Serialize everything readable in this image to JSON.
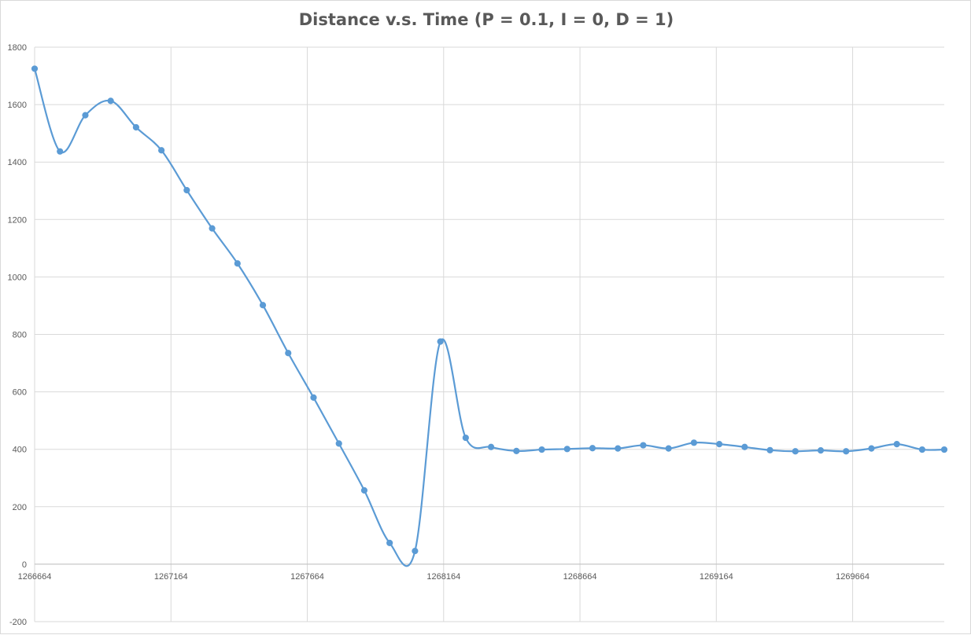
{
  "chart_data": {
    "type": "line",
    "title": "Distance v.s. Time (P = 0.1, I = 0, D = 1)",
    "xlabel": "",
    "ylabel": "",
    "xlim": [
      1266664,
      1270000
    ],
    "ylim": [
      -200,
      1800
    ],
    "x_ticks": [
      1266664,
      1267164,
      1267664,
      1268164,
      1268664,
      1269164,
      1269664
    ],
    "y_ticks": [
      -200,
      0,
      200,
      400,
      600,
      800,
      1000,
      1200,
      1400,
      1600,
      1800
    ],
    "grid": true,
    "legend": "none",
    "line_style": "smoothed",
    "series_color": "#5b9bd5",
    "series": [
      {
        "x": [
          1266664,
          1266757,
          1266850,
          1266943,
          1267036,
          1267129,
          1267222,
          1267315,
          1267408,
          1267501,
          1267594,
          1267687,
          1267780,
          1267873,
          1267966,
          1268059,
          1268152,
          1268245,
          1268338,
          1268431,
          1268524,
          1268617,
          1268710,
          1268803,
          1268896,
          1268989,
          1269082,
          1269175,
          1269268,
          1269361,
          1269454,
          1269547,
          1269640,
          1269733,
          1269826,
          1269919,
          1270000
        ],
        "y": [
          1725,
          1437,
          1563,
          1613,
          1521,
          1441,
          1302,
          1169,
          1047,
          902,
          735,
          580,
          420,
          257,
          74,
          46,
          775,
          440,
          408,
          394,
          399,
          401,
          404,
          403,
          414,
          403,
          423,
          418,
          408,
          397,
          393,
          396,
          393,
          403,
          418,
          399,
          399
        ]
      }
    ]
  }
}
